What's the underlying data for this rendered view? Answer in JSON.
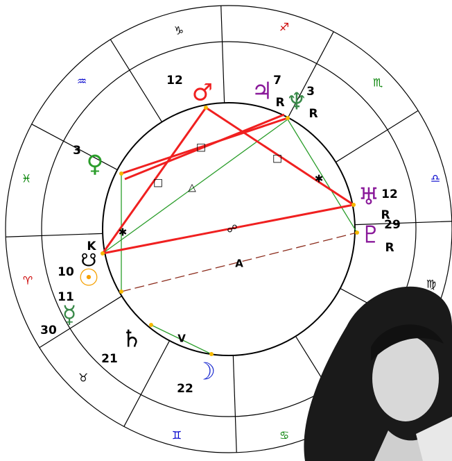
{
  "zodiac_signs": [
    "♑",
    "♐",
    "♏",
    "♎",
    "♍",
    "♋",
    "♊",
    "♉",
    "♈",
    "♓",
    "♒"
  ],
  "planets": [
    {
      "glyph": "♂",
      "degree": "12"
    },
    {
      "glyph": "♃",
      "degree": "7",
      "retrograde": "R"
    },
    {
      "glyph": "♆",
      "degree": "3",
      "retrograde": "R"
    },
    {
      "glyph": "♀",
      "degree": "3"
    },
    {
      "glyph": "♅",
      "degree": "12",
      "retrograde": "R"
    },
    {
      "glyph": "♇",
      "degree": "29",
      "retrograde": "R"
    },
    {
      "glyph": "☉",
      "degree": "10"
    },
    {
      "glyph": "☿",
      "degree": "11"
    },
    {
      "glyph": "♄",
      "degree": "21"
    },
    {
      "glyph": "☽",
      "degree": "22"
    }
  ],
  "points": {
    "chiron": "K",
    "node": "☋",
    "node_degree": "30"
  },
  "aspect_glyphs": [
    "□",
    "□",
    "□",
    "△",
    "✱",
    "✱",
    "☍",
    "A",
    "V"
  ]
}
